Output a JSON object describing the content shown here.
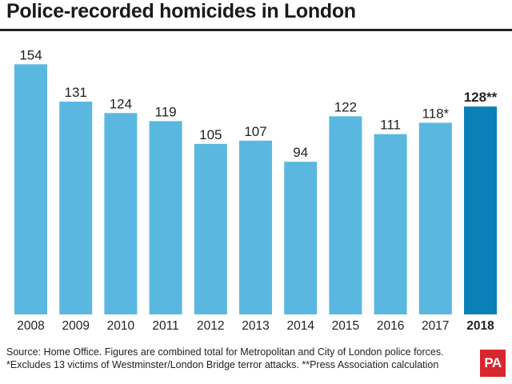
{
  "chart_data": {
    "type": "bar",
    "title": "Police-recorded homicides in London",
    "categories": [
      "2008",
      "2009",
      "2010",
      "2011",
      "2012",
      "2013",
      "2014",
      "2015",
      "2016",
      "2017",
      "2018"
    ],
    "values": [
      154,
      131,
      124,
      119,
      105,
      107,
      94,
      122,
      111,
      118,
      128
    ],
    "value_labels": [
      "154",
      "131",
      "124",
      "119",
      "105",
      "107",
      "94",
      "122",
      "111",
      "118*",
      "128**"
    ],
    "highlight_index": 10,
    "colors": {
      "bar": "#5ab8e0",
      "highlight": "#0a80b8"
    },
    "xlabel": "",
    "ylabel": "",
    "ylim": [
      0,
      160
    ],
    "grid": false,
    "legend": "none"
  },
  "footer": {
    "source": "Source: Home Office. Figures are combined total for Metropolitan and City of London police forces.",
    "notes": "*Excludes 13 victims of Westminster/London Bridge terror attacks. **Press Association calculation"
  },
  "logo": {
    "text": "PA",
    "color": "#d7272f"
  }
}
